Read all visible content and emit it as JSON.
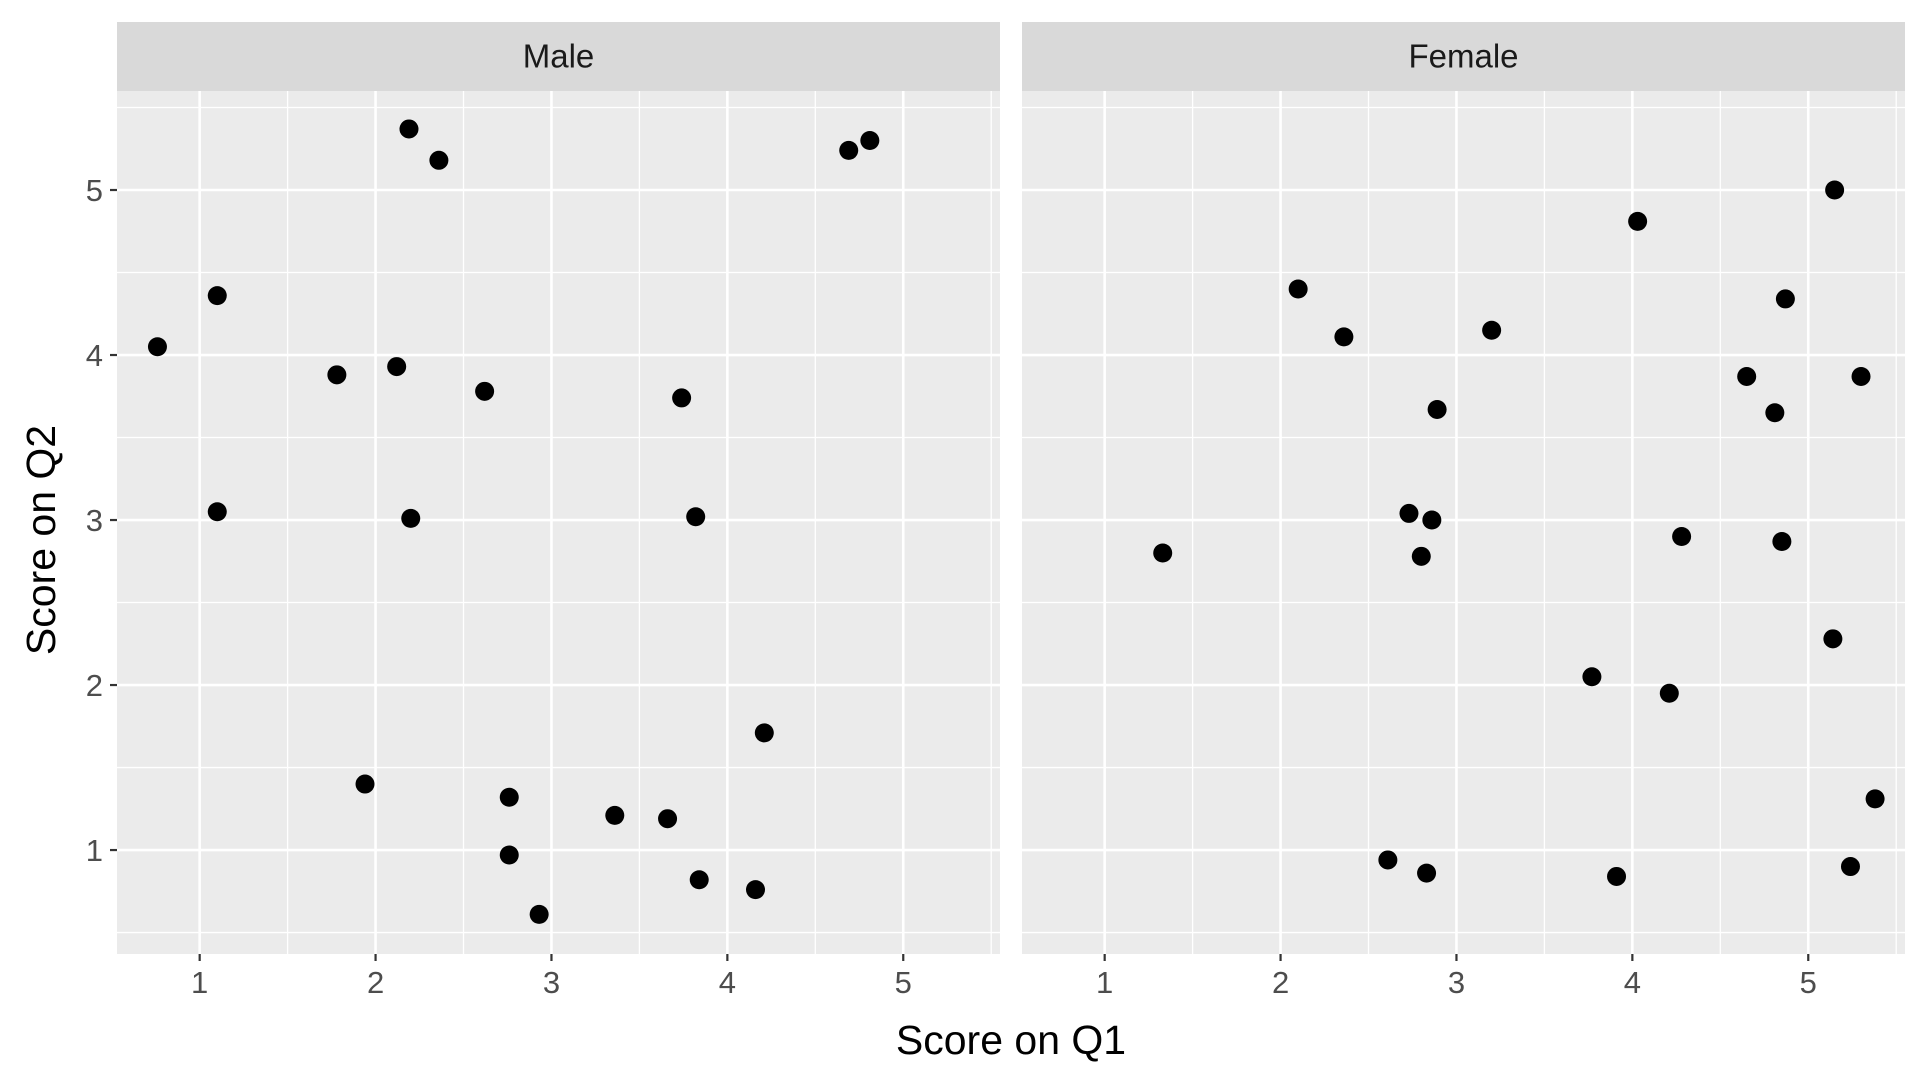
{
  "chart_data": {
    "type": "scatter",
    "xlabel": "Score on Q1",
    "ylabel": "Score on Q2",
    "xlim": [
      0.53,
      5.55
    ],
    "ylim": [
      0.37,
      5.6
    ],
    "x_ticks": [
      "1",
      "2",
      "3",
      "4",
      "5"
    ],
    "y_ticks": [
      "1",
      "2",
      "3",
      "4",
      "5"
    ],
    "x_tick_values": [
      1,
      2,
      3,
      4,
      5
    ],
    "y_tick_values": [
      1,
      2,
      3,
      4,
      5
    ],
    "grid": true,
    "point_color": "#000000",
    "panel_background": "#ebebeb",
    "strip_background": "#d9d9d9",
    "facets": [
      {
        "label": "Male",
        "points": [
          {
            "x": 0.76,
            "y": 4.05
          },
          {
            "x": 1.1,
            "y": 4.36
          },
          {
            "x": 1.1,
            "y": 3.05
          },
          {
            "x": 1.78,
            "y": 3.88
          },
          {
            "x": 1.94,
            "y": 1.4
          },
          {
            "x": 2.12,
            "y": 3.93
          },
          {
            "x": 2.19,
            "y": 5.37
          },
          {
            "x": 2.2,
            "y": 3.01
          },
          {
            "x": 2.36,
            "y": 5.18
          },
          {
            "x": 2.62,
            "y": 3.78
          },
          {
            "x": 2.76,
            "y": 1.32
          },
          {
            "x": 2.76,
            "y": 0.97
          },
          {
            "x": 2.93,
            "y": 0.61
          },
          {
            "x": 3.36,
            "y": 1.21
          },
          {
            "x": 3.66,
            "y": 1.19
          },
          {
            "x": 3.74,
            "y": 3.74
          },
          {
            "x": 3.82,
            "y": 3.02
          },
          {
            "x": 3.84,
            "y": 0.82
          },
          {
            "x": 4.16,
            "y": 0.76
          },
          {
            "x": 4.21,
            "y": 1.71
          },
          {
            "x": 4.69,
            "y": 5.24
          },
          {
            "x": 4.81,
            "y": 5.3
          }
        ]
      },
      {
        "label": "Female",
        "points": [
          {
            "x": 1.33,
            "y": 2.8
          },
          {
            "x": 2.1,
            "y": 4.4
          },
          {
            "x": 2.36,
            "y": 4.11
          },
          {
            "x": 2.61,
            "y": 0.94
          },
          {
            "x": 2.73,
            "y": 3.04
          },
          {
            "x": 2.8,
            "y": 2.78
          },
          {
            "x": 2.83,
            "y": 0.86
          },
          {
            "x": 2.86,
            "y": 3.0
          },
          {
            "x": 2.89,
            "y": 3.67
          },
          {
            "x": 3.2,
            "y": 4.15
          },
          {
            "x": 3.77,
            "y": 2.05
          },
          {
            "x": 3.91,
            "y": 0.84
          },
          {
            "x": 4.03,
            "y": 4.81
          },
          {
            "x": 4.21,
            "y": 1.95
          },
          {
            "x": 4.28,
            "y": 2.9
          },
          {
            "x": 4.65,
            "y": 3.87
          },
          {
            "x": 4.81,
            "y": 3.65
          },
          {
            "x": 4.85,
            "y": 2.87
          },
          {
            "x": 4.87,
            "y": 4.34
          },
          {
            "x": 5.14,
            "y": 2.28
          },
          {
            "x": 5.15,
            "y": 5.0
          },
          {
            "x": 5.24,
            "y": 0.9
          },
          {
            "x": 5.3,
            "y": 3.87
          },
          {
            "x": 5.38,
            "y": 1.31
          }
        ]
      }
    ]
  }
}
